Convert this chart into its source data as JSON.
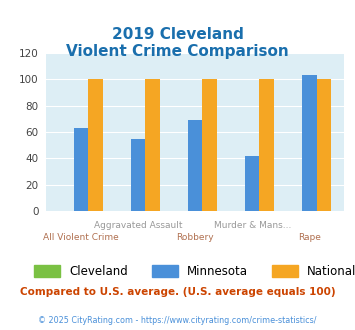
{
  "title_line1": "2019 Cleveland",
  "title_line2": "Violent Crime Comparison",
  "groups": [
    "All Violent Crime",
    "Aggravated Assault",
    "Robbery",
    "Murder & Mans...",
    "Rape"
  ],
  "cleveland": [
    0,
    0,
    0,
    0,
    0
  ],
  "minnesota": [
    63,
    55,
    69,
    42,
    103
  ],
  "national": [
    100,
    100,
    100,
    100,
    100
  ],
  "cleveland_color": "#7ac143",
  "minnesota_color": "#4a90d9",
  "national_color": "#f5a623",
  "ylim": [
    0,
    120
  ],
  "yticks": [
    0,
    20,
    40,
    60,
    80,
    100,
    120
  ],
  "plot_bg": "#ddeef5",
  "title_color": "#1a6fad",
  "label_top_color": "#999999",
  "label_bottom_color": "#b07050",
  "legend_labels": [
    "Cleveland",
    "Minnesota",
    "National"
  ],
  "footer_text": "Compared to U.S. average. (U.S. average equals 100)",
  "footer_color": "#cc4400",
  "copyright_text": "© 2025 CityRating.com - https://www.cityrating.com/crime-statistics/",
  "copyright_color": "#4a90d9",
  "bar_width": 0.25
}
